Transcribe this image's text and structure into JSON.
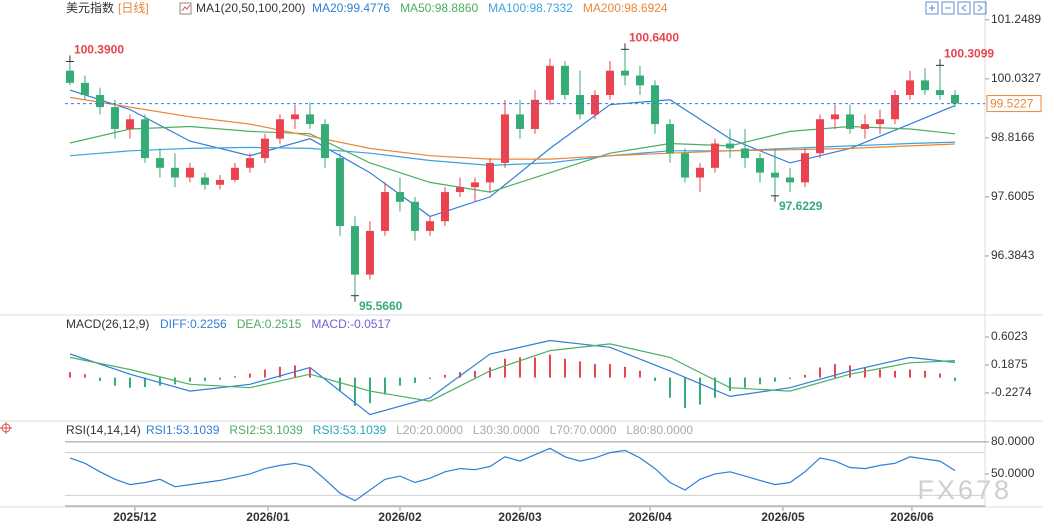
{
  "header": {
    "title": "美元指数",
    "period": "[日线]",
    "watermark": "FX678"
  },
  "chart_data": [
    {
      "type": "candlestick",
      "indicator": "MA1(20,50,100,200)",
      "up_color": "#e8434f",
      "down_color": "#35ab76",
      "xlim": [
        -0.33,
        61
      ],
      "ylim": [
        95.23,
        101.45
      ],
      "yticks": [
        101.2489,
        100.0327,
        98.8166,
        97.6005,
        96.3843
      ],
      "xticks": [
        {
          "value": 4.33,
          "label": "2025/12"
        },
        {
          "value": 13.2,
          "label": "2026/01"
        },
        {
          "value": 22,
          "label": "2026/02"
        },
        {
          "value": 30,
          "label": "2026/03"
        },
        {
          "value": 38.67,
          "label": "2026/04"
        },
        {
          "value": 47.53,
          "label": "2026/05"
        },
        {
          "value": 56.13,
          "label": "2026/06"
        }
      ],
      "open": [
        100.2,
        99.95,
        99.7,
        99.45,
        99.0,
        99.2,
        98.4,
        98.2,
        98.0,
        98.0,
        97.85,
        97.95,
        98.2,
        98.4,
        98.8,
        99.2,
        99.3,
        99.1,
        98.4,
        97.0,
        96.0,
        96.9,
        97.7,
        97.5,
        96.9,
        97.1,
        97.7,
        97.8,
        97.9,
        98.3,
        99.3,
        99.0,
        99.6,
        100.3,
        99.7,
        99.3,
        99.7,
        100.2,
        100.1,
        99.9,
        99.1,
        98.5,
        98.0,
        98.2,
        98.7,
        98.6,
        98.4,
        98.1,
        98.0,
        97.9,
        98.5,
        99.2,
        99.3,
        99.0,
        99.1,
        99.2,
        99.7,
        100.0,
        99.8,
        99.7
      ],
      "high": [
        100.39,
        100.1,
        99.85,
        99.6,
        99.3,
        99.3,
        98.6,
        98.5,
        98.3,
        98.1,
        98.05,
        98.3,
        98.5,
        98.9,
        99.3,
        99.5,
        99.55,
        99.2,
        98.5,
        97.2,
        97.1,
        97.9,
        98.0,
        97.6,
        97.2,
        97.8,
        98.0,
        98.0,
        98.4,
        99.6,
        99.6,
        99.8,
        100.45,
        100.4,
        100.2,
        99.8,
        100.4,
        100.64,
        100.3,
        100.0,
        99.2,
        98.6,
        98.3,
        98.8,
        99.0,
        99.0,
        98.5,
        98.6,
        98.2,
        98.6,
        99.3,
        99.5,
        99.5,
        99.3,
        99.4,
        99.8,
        100.2,
        100.25,
        100.3099,
        99.8
      ],
      "low": [
        99.9,
        99.6,
        99.3,
        98.8,
        98.8,
        98.3,
        98.0,
        97.8,
        97.9,
        97.75,
        97.75,
        97.9,
        98.1,
        98.3,
        98.7,
        99.0,
        99.0,
        98.2,
        96.8,
        95.566,
        95.9,
        96.8,
        97.3,
        96.7,
        96.8,
        97.0,
        97.6,
        97.5,
        97.7,
        98.2,
        98.8,
        98.9,
        99.5,
        99.6,
        99.2,
        99.2,
        99.6,
        99.9,
        99.7,
        98.9,
        98.3,
        97.9,
        97.7,
        98.1,
        98.4,
        98.2,
        97.9,
        97.6229,
        97.7,
        97.8,
        98.4,
        99.0,
        98.9,
        98.8,
        98.9,
        99.1,
        99.6,
        99.7,
        99.6,
        99.45
      ],
      "close": [
        99.95,
        99.7,
        99.45,
        99.0,
        99.2,
        98.4,
        98.2,
        98.0,
        98.2,
        97.85,
        97.95,
        98.2,
        98.4,
        98.8,
        99.2,
        99.3,
        99.1,
        98.4,
        97.0,
        96.0,
        96.9,
        97.7,
        97.5,
        96.9,
        97.1,
        97.7,
        97.8,
        97.9,
        98.3,
        99.3,
        99.0,
        99.6,
        100.3,
        99.7,
        99.3,
        99.7,
        100.2,
        100.1,
        99.9,
        99.1,
        98.5,
        98.0,
        98.2,
        98.7,
        98.6,
        98.4,
        98.1,
        98.0,
        97.9,
        98.5,
        99.2,
        99.3,
        99.0,
        99.1,
        99.2,
        99.7,
        100.0,
        99.8,
        99.7,
        99.5227
      ],
      "last_price": 99.5227,
      "annotations": [
        {
          "x": 0,
          "value": 100.39,
          "label": "100.3900"
        },
        {
          "x": 37,
          "value": 100.64,
          "label": "100.6400"
        },
        {
          "x": 19,
          "value": 95.566,
          "label": "95.5660"
        },
        {
          "x": 47,
          "value": 97.6229,
          "label": "97.6229"
        },
        {
          "x": 58,
          "value": 100.3099,
          "label": "100.3099"
        }
      ],
      "ma_x": [
        0,
        4,
        8,
        12,
        16,
        20,
        24,
        28,
        32,
        36,
        40,
        44,
        48,
        52,
        56,
        59
      ],
      "series": [
        {
          "name": "MA20:99.4776",
          "color": "#2f7fd8",
          "values": [
            99.8,
            99.4,
            98.75,
            98.45,
            98.8,
            98.1,
            97.2,
            97.6,
            98.6,
            99.5,
            99.6,
            98.8,
            98.3,
            98.6,
            99.1,
            99.48
          ]
        },
        {
          "name": "MA50:98.8860",
          "color": "#4cae62",
          "values": [
            98.71,
            99.0,
            99.05,
            98.95,
            98.9,
            98.3,
            97.9,
            97.7,
            98.1,
            98.5,
            98.7,
            98.65,
            98.95,
            99.05,
            99.0,
            98.9
          ]
        },
        {
          "name": "MA100:98.7332",
          "color": "#3fa3dc",
          "values": [
            98.45,
            98.55,
            98.6,
            98.62,
            98.6,
            98.5,
            98.35,
            98.25,
            98.3,
            98.45,
            98.55,
            98.55,
            98.6,
            98.65,
            98.7,
            98.73
          ]
        },
        {
          "name": "MA200:98.6924",
          "color": "#e8873a",
          "values": [
            99.65,
            99.45,
            99.25,
            99.1,
            98.85,
            98.6,
            98.45,
            98.38,
            98.38,
            98.45,
            98.5,
            98.55,
            98.57,
            98.6,
            98.65,
            98.69
          ]
        }
      ]
    },
    {
      "type": "macd",
      "title": "MACD(26,12,9)",
      "histogram_label": "MACD:-0.0517",
      "histogram_label_color": "#7b5bd6",
      "up_color": "#e8434f",
      "down_color": "#35ab76",
      "ylim": [
        -0.6,
        0.855
      ],
      "yticks": [
        0.6023,
        0.1875,
        -0.2274
      ],
      "values": [
        0.08,
        0.05,
        -0.05,
        -0.12,
        -0.15,
        -0.14,
        -0.12,
        -0.1,
        -0.06,
        -0.05,
        -0.03,
        0.02,
        0.06,
        0.12,
        0.16,
        0.18,
        0.14,
        0.0,
        -0.2,
        -0.42,
        -0.38,
        -0.25,
        -0.12,
        -0.08,
        -0.02,
        0.04,
        0.08,
        0.1,
        0.15,
        0.28,
        0.3,
        0.3,
        0.34,
        0.28,
        0.24,
        0.2,
        0.2,
        0.16,
        0.1,
        -0.05,
        -0.3,
        -0.45,
        -0.4,
        -0.3,
        -0.2,
        -0.15,
        -0.1,
        -0.06,
        -0.02,
        0.04,
        0.15,
        0.2,
        0.18,
        0.15,
        0.12,
        0.1,
        0.12,
        0.1,
        0.06,
        -0.05
      ],
      "line_x": [
        0,
        4,
        8,
        12,
        16,
        20,
        24,
        28,
        32,
        36,
        40,
        44,
        48,
        52,
        56,
        59
      ],
      "series": [
        {
          "name": "DIFF:0.2256",
          "color": "#2f7fd8",
          "values": [
            0.35,
            0.05,
            -0.2,
            -0.1,
            0.15,
            -0.55,
            -0.3,
            0.35,
            0.55,
            0.45,
            0.1,
            -0.28,
            -0.15,
            0.1,
            0.3,
            0.2256
          ]
        },
        {
          "name": "DEA:0.2515",
          "color": "#4cae62",
          "values": [
            0.3,
            0.12,
            -0.1,
            -0.15,
            0.05,
            -0.2,
            -0.35,
            0.1,
            0.4,
            0.5,
            0.3,
            -0.15,
            -0.2,
            0.05,
            0.22,
            0.2515
          ]
        }
      ]
    },
    {
      "type": "rsi",
      "title": "RSI(14,14,14)",
      "ylim": [
        20,
        93
      ],
      "yticks": [
        {
          "value": 80,
          "label": "80.0000"
        },
        {
          "value": 50,
          "label": "50.0000"
        }
      ],
      "series": [
        {
          "name": "RSI1:53.1039",
          "color": "#2f7fd8",
          "values": [
            65,
            60,
            52,
            45,
            40,
            42,
            45,
            38,
            40,
            42,
            44,
            47,
            50,
            55,
            58,
            60,
            57,
            45,
            32,
            25,
            35,
            45,
            48,
            42,
            46,
            52,
            55,
            54,
            57,
            66,
            62,
            68,
            74,
            66,
            62,
            65,
            70,
            72,
            65,
            55,
            42,
            35,
            45,
            50,
            52,
            48,
            44,
            40,
            42,
            52,
            65,
            62,
            56,
            55,
            58,
            60,
            66,
            64,
            62,
            53.1039
          ]
        }
      ],
      "legend": [
        {
          "label": "RSI2:53.1039",
          "color": "#4cae62"
        },
        {
          "label": "RSI3:53.1039",
          "color": "#24a7b8"
        }
      ],
      "levels": [
        {
          "value": 20,
          "label": "L20:20.0000"
        },
        {
          "value": 30,
          "label": "L30:30.0000"
        },
        {
          "value": 70,
          "label": "L70:70.0000"
        },
        {
          "value": 80,
          "label": "L80:80.0000"
        }
      ]
    }
  ]
}
